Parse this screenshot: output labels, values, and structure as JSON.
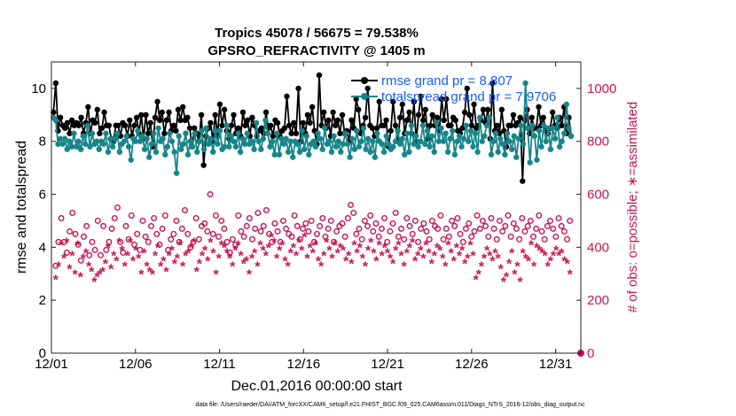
{
  "chart_data": {
    "type": "line",
    "title": "Tropics 45078 / 56675 = 79.538%",
    "subtitle": "GPSRO_REFRACTIVITY @ 1405 m",
    "xlabel": "Dec.01,2016 00:00:00 start",
    "ylabel": "rmse and totalspread",
    "y2label": "# of obs: o=possible; ∗=assimilated",
    "xlim": [
      0,
      31.5
    ],
    "ylim": [
      0,
      11
    ],
    "y2lim": [
      0,
      1100
    ],
    "xticks": [
      0,
      5,
      10,
      15,
      20,
      25,
      30
    ],
    "xtick_labels": [
      "12/01",
      "12/06",
      "12/11",
      "12/16",
      "12/21",
      "12/26",
      "12/31"
    ],
    "yticks": [
      0,
      2,
      4,
      6,
      8,
      10
    ],
    "y2ticks": [
      0,
      200,
      400,
      600,
      800,
      1000
    ],
    "footnote": "data file: /Users/raeder/DAI/ATM_forcXX/CAM6_setup/f.e21.FHIST_BGC.f09_025.CAM6assim.011/Diags_NTrS_2016-12/obs_diag_output.nc",
    "legend": [
      "rmse grand pr = 8.807",
      "totalspread grand pr = 7.9706"
    ],
    "series": [
      {
        "name": "rmse",
        "axis": "left",
        "color": "#000000",
        "values": [
          9.1,
          10.2,
          8.4,
          8.9,
          8.6,
          8.5,
          8.7,
          8.3,
          8.8,
          8.6,
          8.7,
          8.6,
          8.9,
          8.3,
          8.7,
          9.3,
          8.3,
          8.8,
          8.7,
          9.2,
          8.3,
          8.5,
          9.1,
          8.6,
          8.6,
          8.1,
          8.0,
          8.6,
          8.6,
          8.2,
          8.7,
          8.6,
          8.2,
          8.8,
          8.2,
          8.6,
          8.9,
          8.3,
          9.0,
          8.1,
          9.0,
          8.3,
          8.7,
          7.8,
          8.9,
          9.5,
          8.8,
          9.1,
          8.3,
          8.8,
          9.1,
          8.4,
          8.6,
          8.4,
          9.2,
          8.8,
          9.3,
          8.8,
          8.9,
          8.5,
          7.8,
          8.5,
          8.3,
          8.0,
          9.0,
          7.1,
          8.2,
          8.5,
          8.7,
          8.0,
          9.0,
          8.2,
          9.4,
          8.6,
          9.2,
          8.4,
          8.1,
          8.6,
          9.0,
          8.3,
          8.5,
          8.2,
          9.1,
          8.6,
          8.8,
          8.2,
          8.9,
          8.6,
          8.2,
          8.4,
          8.5,
          8.3,
          9.1,
          8.5,
          8.6,
          8.2,
          8.8,
          8.7,
          8.2,
          8.4,
          8.5,
          9.7,
          8.6,
          8.3,
          8.7,
          8.3,
          10.0,
          8.0,
          8.7,
          8.3,
          9.0,
          8.7,
          9.3,
          8.4,
          7.9,
          10.5,
          8.6,
          9.1,
          8.5,
          8.8,
          8.2,
          9.1,
          8.6,
          8.8,
          8.3,
          9.0,
          8.3,
          8.4,
          8.0,
          8.8,
          8.5,
          9.6,
          9.2,
          8.3,
          8.6,
          8.9,
          10.0,
          8.6,
          8.5,
          8.2,
          8.5,
          9.5,
          8.6,
          8.6,
          8.8,
          7.8,
          8.4,
          9.5,
          8.6,
          8.0,
          8.9,
          9.4,
          8.3,
          8.8,
          9.1,
          8.3,
          9.5,
          8.0,
          9.0,
          9.7,
          8.8,
          9.2,
          8.1,
          8.6,
          9.0,
          8.6,
          8.9,
          8.4,
          9.6,
          8.8,
          9.6,
          8.6,
          8.6,
          8.9,
          8.8,
          8.4,
          8.3,
          8.5,
          9.1,
          10.0,
          9.0,
          8.6,
          9.4,
          8.5,
          8.6,
          8.8,
          9.2,
          8.7,
          9.2,
          8.1,
          10.2,
          8.4,
          8.6,
          8.3,
          9.2,
          8.4,
          7.8,
          8.6,
          8.6,
          9.0,
          8.6,
          8.7,
          8.9,
          6.5,
          8.8,
          9.2,
          8.3,
          8.9,
          8.5,
          8.5,
          9.3,
          8.6,
          8.9,
          8.4,
          8.3,
          8.5,
          9.1,
          8.6,
          8.5,
          8.9,
          8.6,
          9.3,
          8.3,
          8.9,
          8.2
        ]
      },
      {
        "name": "totalspread",
        "axis": "left",
        "color": "#16868a",
        "values": [
          8.9,
          8.8,
          7.9,
          8.1,
          7.9,
          8.1,
          7.7,
          8.0,
          7.8,
          8.3,
          7.8,
          8.0,
          7.7,
          8.2,
          7.9,
          8.6,
          7.8,
          8.3,
          7.9,
          8.0,
          7.7,
          8.0,
          7.9,
          8.3,
          7.6,
          8.1,
          7.8,
          8.1,
          8.3,
          7.6,
          7.9,
          8.0,
          8.2,
          7.8,
          7.3,
          8.1,
          8.0,
          8.4,
          8.0,
          8.2,
          7.7,
          8.1,
          7.4,
          7.9,
          8.3,
          7.6,
          8.5,
          8.0,
          8.1,
          7.5,
          7.8,
          8.3,
          8.0,
          7.6,
          6.8,
          8.2,
          7.7,
          7.9,
          8.3,
          7.5,
          8.0,
          7.8,
          8.3,
          7.6,
          8.0,
          8.4,
          7.7,
          8.5,
          7.9,
          8.1,
          7.6,
          8.4,
          7.9,
          8.4,
          7.7,
          7.8,
          8.6,
          7.8,
          8.2,
          8.0,
          7.8,
          8.3,
          7.6,
          8.1,
          7.9,
          8.3,
          7.9,
          8.0,
          7.7,
          8.7,
          8.0,
          7.7,
          8.1,
          8.8,
          8.3,
          7.8,
          8.0,
          7.5,
          8.3,
          7.5,
          8.1,
          7.9,
          8.1,
          7.6,
          8.0,
          7.4,
          8.0,
          7.9,
          7.6,
          8.4,
          7.7,
          8.2,
          7.5,
          7.9,
          8.0,
          7.8,
          8.3,
          8.1,
          7.7,
          8.5,
          7.9,
          8.0,
          7.6,
          8.2,
          7.8,
          8.0,
          7.6,
          7.9,
          8.3,
          7.9,
          7.4,
          8.1,
          7.7,
          8.4,
          7.8,
          8.0,
          8.5,
          7.7,
          8.1,
          7.6,
          8.0,
          7.4,
          8.3,
          8.0,
          7.9,
          7.6,
          8.2,
          7.9,
          7.7,
          7.8,
          8.0,
          8.4,
          7.9,
          8.1,
          7.5,
          8.3,
          7.6,
          8.6,
          7.9,
          8.2,
          7.8,
          8.0,
          8.6,
          7.9,
          8.4,
          7.8,
          8.2,
          7.6,
          8.7,
          8.0,
          8.5,
          8.0,
          8.3,
          7.6,
          8.1,
          8.4,
          7.5,
          8.0,
          8.2,
          7.8,
          8.1,
          8.6,
          8.0,
          8.4,
          7.8,
          8.3,
          7.6,
          8.9,
          8.0,
          8.2,
          8.6,
          8.9,
          7.5,
          8.0,
          8.3,
          7.6,
          8.1,
          7.9,
          7.5,
          8.3,
          8.0,
          7.7,
          8.2,
          7.4,
          8.1,
          8.6,
          7.9,
          10.2,
          8.5,
          7.2,
          8.6,
          8.2,
          7.3,
          8.4,
          7.8,
          8.6,
          8.0,
          8.5,
          7.7,
          8.5,
          8.1,
          8.9,
          7.8,
          8.0,
          8.3,
          9.4,
          8.5,
          8.2
        ]
      },
      {
        "name": "possible",
        "axis": "right",
        "color": "#c8154f",
        "marker": "o",
        "values": [
          330,
          420,
          510,
          420,
          380,
          460,
          530,
          450,
          410,
          350,
          440,
          480,
          370,
          420,
          390,
          500,
          370,
          480,
          390,
          420,
          470,
          510,
          550,
          420,
          380,
          480,
          430,
          520,
          410,
          450,
          390,
          500,
          440,
          420,
          480,
          510,
          450,
          410,
          470,
          520,
          390,
          430,
          450,
          500,
          420,
          470,
          540,
          450,
          400,
          420,
          510,
          430,
          480,
          490,
          460,
          600,
          450,
          520,
          440,
          500,
          470,
          420,
          380,
          430,
          410,
          520,
          460,
          440,
          480,
          510,
          430,
          470,
          530,
          460,
          480,
          540,
          450,
          420,
          490,
          460,
          420,
          500,
          470,
          450,
          440,
          520,
          480,
          430,
          470,
          490,
          460,
          500,
          420,
          450,
          480,
          510,
          440,
          470,
          500,
          420,
          460,
          480,
          490,
          440,
          510,
          560,
          530,
          450,
          470,
          430,
          500,
          480,
          520,
          460,
          490,
          440,
          470,
          510,
          420,
          460,
          490,
          530,
          440,
          470,
          430,
          510,
          480,
          450,
          500,
          420,
          470,
          490,
          460,
          430,
          500,
          480,
          470,
          520,
          430,
          470,
          440,
          500,
          480,
          510,
          450,
          420,
          470,
          490,
          440,
          460,
          520,
          470,
          500,
          480,
          440,
          510,
          470,
          430,
          500,
          460,
          480,
          520,
          440,
          490,
          470,
          430,
          510,
          460,
          480,
          500,
          440,
          470,
          520,
          460,
          430,
          480,
          500,
          470,
          440,
          510,
          480,
          460,
          430,
          500
        ]
      },
      {
        "name": "assimilated",
        "axis": "right",
        "color": "#c8154f",
        "marker": "*",
        "values": [
          280,
          330,
          410,
          360,
          420,
          320,
          370,
          300,
          410,
          290,
          360,
          380,
          330,
          310,
          270,
          290,
          300,
          310,
          340,
          400,
          320,
          370,
          350,
          420,
          390,
          330,
          370,
          420,
          350,
          390,
          360,
          300,
          380,
          330,
          310,
          300,
          370,
          400,
          330,
          350,
          310,
          370,
          390,
          340,
          360,
          410,
          330,
          370,
          380,
          400,
          420,
          310,
          340,
          370,
          390,
          350,
          420,
          380,
          300,
          360,
          410,
          400,
          380,
          360,
          330,
          390,
          410,
          370,
          340,
          350,
          300,
          360,
          380,
          330,
          410,
          390,
          370,
          400,
          440,
          420,
          360,
          390,
          410,
          350,
          330,
          380,
          400,
          370,
          420,
          390,
          440,
          360,
          400,
          380,
          410,
          350,
          330,
          370,
          420,
          390,
          360,
          410,
          380,
          400,
          390,
          350,
          370,
          340,
          410,
          380,
          400,
          360,
          330,
          390,
          420,
          380,
          350,
          410,
          370,
          400,
          380,
          360,
          340,
          390,
          410,
          370,
          330,
          380,
          400,
          420,
          350,
          370,
          390,
          360,
          410,
          380,
          340,
          370,
          400,
          390,
          360,
          330,
          410,
          380,
          350,
          400,
          370,
          390,
          340,
          360,
          410,
          370,
          280,
          300,
          330,
          360,
          390,
          370,
          350,
          380,
          360,
          320,
          270,
          290,
          340,
          380,
          300,
          330,
          270,
          380,
          360,
          350,
          410,
          330,
          400,
          390,
          380,
          370,
          330,
          350,
          370,
          390,
          370,
          380,
          350,
          340,
          300
        ]
      }
    ]
  }
}
